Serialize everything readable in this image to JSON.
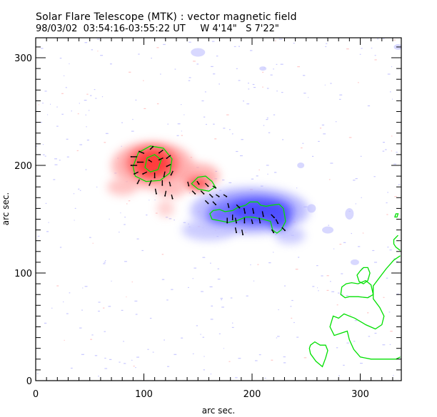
{
  "chart_data": {
    "type": "heatmap",
    "title": "Solar Flare Telescope (MTK) : vector magnetic field",
    "subtitle": "98/03/02  03:54:16-03:55:22 UT     W 4'14\"   S 7'22\"",
    "xlabel": "arc sec.",
    "ylabel": "arc sec.",
    "xlim": [
      0,
      337
    ],
    "ylim": [
      0,
      318
    ],
    "x_ticks": [
      0,
      100,
      200,
      300
    ],
    "y_ticks": [
      0,
      100,
      200,
      300
    ],
    "x_tick_labels": [
      "0",
      "100",
      "200",
      "300"
    ],
    "y_tick_labels": [
      "0",
      "100",
      "200",
      "300"
    ],
    "colors": {
      "positive_polarity": "#ff3030",
      "negative_polarity": "#3030ff",
      "contour": "#00e000",
      "vectors": "#000000"
    },
    "regions": [
      {
        "name": "positive",
        "center": [
          108,
          200
        ],
        "extent": [
          [
            68,
            175
          ],
          [
            165,
            230
          ]
        ]
      },
      {
        "name": "negative",
        "center": [
          195,
          158
        ],
        "extent": [
          [
            130,
            120
          ],
          [
            255,
            195
          ]
        ]
      }
    ],
    "contours": [
      {
        "name": "positive-core-outer",
        "points": [
          [
            90,
            199
          ],
          [
            95,
            212
          ],
          [
            106,
            218
          ],
          [
            118,
            216
          ],
          [
            126,
            206
          ],
          [
            124,
            193
          ],
          [
            115,
            186
          ],
          [
            102,
            185
          ],
          [
            92,
            190
          ]
        ]
      },
      {
        "name": "positive-core-inner",
        "points": [
          [
            101,
            198
          ],
          [
            103,
            207
          ],
          [
            110,
            210
          ],
          [
            116,
            205
          ],
          [
            113,
            196
          ],
          [
            106,
            194
          ]
        ]
      },
      {
        "name": "positive-small",
        "points": [
          [
            144,
            183
          ],
          [
            150,
            189
          ],
          [
            157,
            190
          ],
          [
            163,
            185
          ],
          [
            166,
            180
          ],
          [
            160,
            176
          ],
          [
            155,
            177
          ],
          [
            150,
            178
          ]
        ]
      },
      {
        "name": "negative-core",
        "points": [
          [
            161,
            155
          ],
          [
            163,
            150
          ],
          [
            173,
            148
          ],
          [
            178,
            147
          ],
          [
            187,
            149
          ],
          [
            194,
            152
          ],
          [
            200,
            152
          ],
          [
            210,
            150
          ],
          [
            217,
            148
          ],
          [
            219,
            140
          ],
          [
            223,
            137
          ],
          [
            227,
            140
          ],
          [
            231,
            148
          ],
          [
            229,
            160
          ],
          [
            225,
            164
          ],
          [
            218,
            163
          ],
          [
            213,
            162
          ],
          [
            208,
            163
          ],
          [
            205,
            166
          ],
          [
            198,
            166
          ],
          [
            194,
            163
          ],
          [
            187,
            161
          ],
          [
            182,
            158
          ],
          [
            175,
            157
          ],
          [
            170,
            159
          ],
          [
            164,
            158
          ]
        ]
      },
      {
        "name": "edge-1",
        "points": [
          [
            333,
            155
          ],
          [
            332,
            152
          ],
          [
            334,
            152
          ],
          [
            335,
            155
          ]
        ]
      },
      {
        "name": "edge-2",
        "points": [
          [
            335,
            135
          ],
          [
            331,
            131
          ],
          [
            331,
            127
          ],
          [
            333,
            124
          ],
          [
            337,
            121
          ]
        ]
      },
      {
        "name": "edge-3",
        "points": [
          [
            300,
            102
          ],
          [
            303,
            105
          ],
          [
            307,
            105
          ],
          [
            309,
            100
          ],
          [
            307,
            93
          ],
          [
            303,
            90
          ],
          [
            299,
            92
          ],
          [
            297,
            98
          ],
          [
            300,
            102
          ],
          [
            301,
            103
          ]
        ]
      },
      {
        "name": "edge-4",
        "points": [
          [
            337,
            116
          ],
          [
            331,
            112
          ],
          [
            324,
            104
          ],
          [
            318,
            96
          ],
          [
            312,
            88
          ],
          [
            312,
            76
          ],
          [
            318,
            68
          ],
          [
            322,
            60
          ],
          [
            320,
            52
          ],
          [
            314,
            48
          ],
          [
            305,
            52
          ],
          [
            295,
            58
          ],
          [
            285,
            62
          ],
          [
            280,
            58
          ],
          [
            275,
            60
          ],
          [
            272,
            50
          ],
          [
            276,
            42
          ],
          [
            288,
            46
          ],
          [
            290,
            38
          ],
          [
            294,
            29
          ],
          [
            300,
            22
          ],
          [
            310,
            20
          ],
          [
            325,
            20
          ],
          [
            333,
            20
          ],
          [
            337,
            22
          ]
        ]
      },
      {
        "name": "edge-5",
        "points": [
          [
            283,
            87
          ],
          [
            282,
            80
          ],
          [
            286,
            77
          ],
          [
            290,
            78
          ],
          [
            298,
            78
          ],
          [
            307,
            77
          ],
          [
            312,
            80
          ],
          [
            310,
            89
          ],
          [
            305,
            93
          ],
          [
            298,
            90
          ],
          [
            292,
            91
          ],
          [
            287,
            90
          ]
        ]
      },
      {
        "name": "edge-6",
        "points": [
          [
            254,
            33
          ],
          [
            258,
            36
          ],
          [
            263,
            33
          ],
          [
            268,
            33
          ],
          [
            270,
            28
          ],
          [
            268,
            21
          ],
          [
            265,
            13
          ],
          [
            259,
            18
          ],
          [
            254,
            25
          ],
          [
            253,
            30
          ]
        ]
      }
    ],
    "vectors_description": "transverse field vectors over active region",
    "vectors": [
      [
        91,
        208,
        -6,
        0
      ],
      [
        98,
        212,
        -5,
        -2
      ],
      [
        107,
        216,
        3,
        -3
      ],
      [
        116,
        213,
        -4,
        3
      ],
      [
        123,
        208,
        -4,
        3
      ],
      [
        91,
        200,
        -6,
        0
      ],
      [
        97,
        203,
        -6,
        0
      ],
      [
        106,
        204,
        -3,
        -2
      ],
      [
        116,
        206,
        -4,
        2
      ],
      [
        123,
        200,
        -4,
        2
      ],
      [
        93,
        193,
        -4,
        2
      ],
      [
        101,
        193,
        -4,
        2
      ],
      [
        110,
        191,
        0,
        5
      ],
      [
        119,
        192,
        -1,
        5
      ],
      [
        126,
        193,
        -2,
        4
      ],
      [
        95,
        185,
        -2,
        4
      ],
      [
        106,
        184,
        -2,
        5
      ],
      [
        117,
        184,
        0,
        5
      ],
      [
        124,
        183,
        1,
        4
      ],
      [
        111,
        176,
        1,
        5
      ],
      [
        120,
        174,
        -1,
        5
      ],
      [
        126,
        171,
        1,
        4
      ],
      [
        141,
        183,
        1,
        4
      ],
      [
        150,
        184,
        2,
        3
      ],
      [
        158,
        182,
        3,
        3
      ],
      [
        165,
        180,
        3,
        2
      ],
      [
        146,
        175,
        3,
        3
      ],
      [
        154,
        175,
        3,
        3
      ],
      [
        162,
        172,
        3,
        3
      ],
      [
        168,
        172,
        3,
        2
      ],
      [
        175,
        172,
        3,
        2
      ],
      [
        158,
        166,
        3,
        3
      ],
      [
        165,
        165,
        3,
        3
      ],
      [
        178,
        163,
        1,
        4
      ],
      [
        187,
        162,
        3,
        3
      ],
      [
        182,
        152,
        0,
        5
      ],
      [
        193,
        158,
        1,
        5
      ],
      [
        201,
        158,
        1,
        5
      ],
      [
        210,
        155,
        1,
        5
      ],
      [
        219,
        153,
        3,
        3
      ],
      [
        177,
        149,
        0,
        5
      ],
      [
        185,
        149,
        1,
        5
      ],
      [
        193,
        149,
        0,
        5
      ],
      [
        200,
        148,
        1,
        4
      ],
      [
        207,
        149,
        1,
        5
      ],
      [
        223,
        148,
        2,
        4
      ],
      [
        185,
        140,
        1,
        5
      ],
      [
        191,
        138,
        1,
        5
      ],
      [
        219,
        139,
        2,
        3
      ],
      [
        229,
        141,
        3,
        3
      ]
    ]
  }
}
